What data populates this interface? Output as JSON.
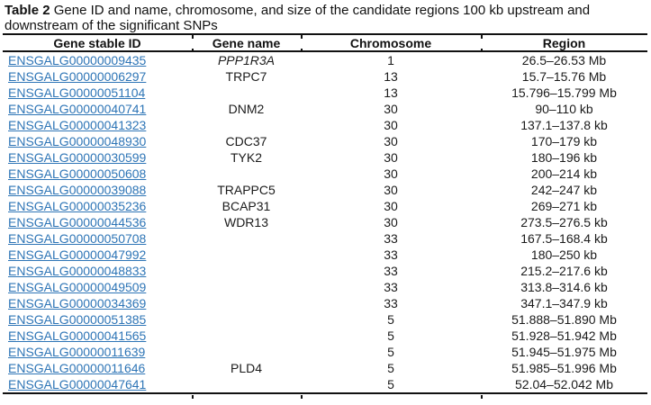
{
  "caption": {
    "label": "Table 2",
    "line1": " Gene ID and name, chromosome, and size of the candidate regions 100 kb upstream and",
    "line2": "downstream of the significant SNPs"
  },
  "table": {
    "columns": [
      "Gene stable ID",
      "Gene name",
      "Chromosome",
      "Region"
    ],
    "rows": [
      {
        "gene_id": "ENSGALG00000009435",
        "gene_name": "PPP1R3A",
        "gene_name_italic": true,
        "chromosome": "1",
        "region": "26.5–26.53 Mb"
      },
      {
        "gene_id": "ENSGALG00000006297",
        "gene_name": "TRPC7",
        "gene_name_italic": false,
        "chromosome": "13",
        "region": "15.7–15.76 Mb"
      },
      {
        "gene_id": "ENSGALG00000051104",
        "gene_name": "",
        "gene_name_italic": false,
        "chromosome": "13",
        "region": "15.796–15.799 Mb"
      },
      {
        "gene_id": "ENSGALG00000040741",
        "gene_name": "DNM2",
        "gene_name_italic": false,
        "chromosome": "30",
        "region": "90–110 kb"
      },
      {
        "gene_id": "ENSGALG00000041323",
        "gene_name": "",
        "gene_name_italic": false,
        "chromosome": "30",
        "region": "137.1–137.8 kb"
      },
      {
        "gene_id": "ENSGALG00000048930",
        "gene_name": "CDC37",
        "gene_name_italic": false,
        "chromosome": "30",
        "region": "170–179 kb"
      },
      {
        "gene_id": "ENSGALG00000030599",
        "gene_name": "TYK2",
        "gene_name_italic": false,
        "chromosome": "30",
        "region": "180–196 kb"
      },
      {
        "gene_id": "ENSGALG00000050608",
        "gene_name": "",
        "gene_name_italic": false,
        "chromosome": "30",
        "region": "200–214 kb"
      },
      {
        "gene_id": "ENSGALG00000039088",
        "gene_name": "TRAPPC5",
        "gene_name_italic": false,
        "chromosome": "30",
        "region": "242–247 kb"
      },
      {
        "gene_id": "ENSGALG00000035236",
        "gene_name": "BCAP31",
        "gene_name_italic": false,
        "chromosome": "30",
        "region": "269–271 kb"
      },
      {
        "gene_id": "ENSGALG00000044536",
        "gene_name": "WDR13",
        "gene_name_italic": false,
        "chromosome": "30",
        "region": "273.5–276.5 kb"
      },
      {
        "gene_id": "ENSGALG00000050708",
        "gene_name": "",
        "gene_name_italic": false,
        "chromosome": "33",
        "region": "167.5–168.4 kb"
      },
      {
        "gene_id": "ENSGALG00000047992",
        "gene_name": "",
        "gene_name_italic": false,
        "chromosome": "33",
        "region": "180–250 kb"
      },
      {
        "gene_id": "ENSGALG00000048833",
        "gene_name": "",
        "gene_name_italic": false,
        "chromosome": "33",
        "region": "215.2–217.6 kb"
      },
      {
        "gene_id": "ENSGALG00000049509",
        "gene_name": "",
        "gene_name_italic": false,
        "chromosome": "33",
        "region": "313.8–314.6 kb"
      },
      {
        "gene_id": "ENSGALG00000034369",
        "gene_name": "",
        "gene_name_italic": false,
        "chromosome": "33",
        "region": "347.1–347.9 kb"
      },
      {
        "gene_id": "ENSGALG00000051385",
        "gene_name": "",
        "gene_name_italic": false,
        "chromosome": "5",
        "region": "51.888–51.890 Mb"
      },
      {
        "gene_id": "ENSGALG00000041565",
        "gene_name": "",
        "gene_name_italic": false,
        "chromosome": "5",
        "region": "51.928–51.942 Mb"
      },
      {
        "gene_id": "ENSGALG00000011639",
        "gene_name": "",
        "gene_name_italic": false,
        "chromosome": "5",
        "region": "51.945–51.975 Mb"
      },
      {
        "gene_id": "ENSGALG00000011646",
        "gene_name": "PLD4",
        "gene_name_italic": false,
        "chromosome": "5",
        "region": "51.985–51.996 Mb"
      },
      {
        "gene_id": "ENSGALG00000047641",
        "gene_name": "",
        "gene_name_italic": false,
        "chromosome": "5",
        "region": "52.04–52.042 Mb"
      }
    ]
  },
  "colors": {
    "link": "#2e75b6",
    "text": "#1b1b1b",
    "rule": "#111111"
  }
}
